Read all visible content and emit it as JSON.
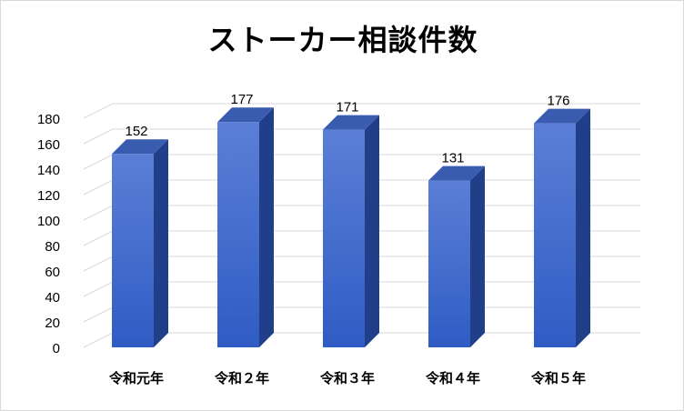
{
  "chart_data": {
    "type": "bar",
    "title": "ストーカー相談件数",
    "categories": [
      "令和元年",
      "令和２年",
      "令和３年",
      "令和４年",
      "令和５年"
    ],
    "values": [
      152,
      177,
      171,
      131,
      176
    ],
    "ylim": [
      0,
      180
    ],
    "yticks": [
      0,
      20,
      40,
      60,
      80,
      100,
      120,
      140,
      160,
      180
    ],
    "grid": true,
    "legend": "none",
    "style": "3d-column",
    "colors": {
      "bar_top": "#5b7fd6",
      "bar_bottom": "#2f5cc4",
      "bar_side": "#213f88",
      "bar_cap": "#3a5cb0",
      "grid": "#d9d9d9"
    }
  }
}
